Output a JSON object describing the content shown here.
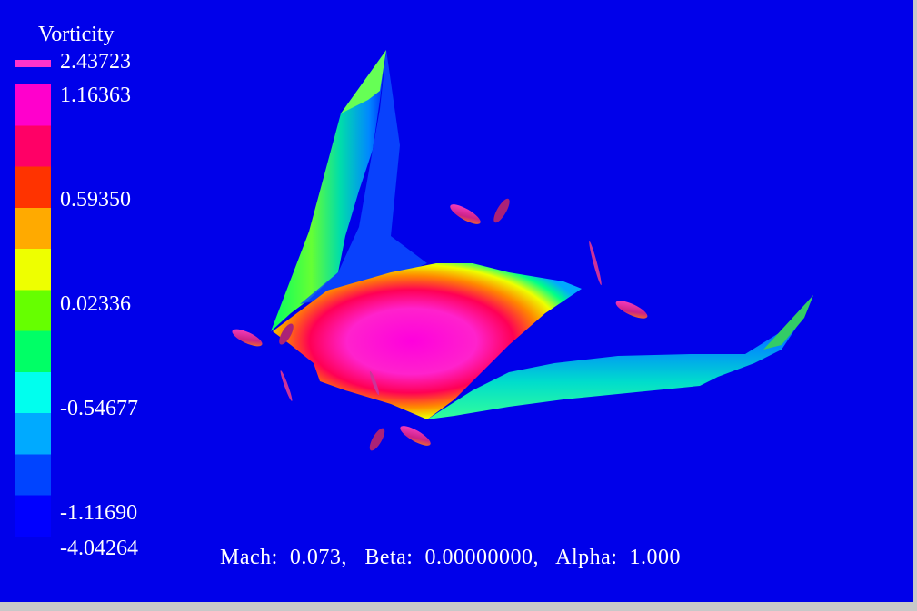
{
  "legend": {
    "title": "Vorticity",
    "max_label": "2.43723",
    "min_label": "-4.04264",
    "ticks": [
      "1.16363",
      "0.59350",
      "0.02336",
      "-0.54677",
      "-1.11690"
    ],
    "max_color": "#ff33cc",
    "min_color": "#0000ff"
  },
  "status": {
    "mach_label": "Mach:",
    "mach_value": "0.073,",
    "beta_label": "Beta:",
    "beta_value": "0.00000000,",
    "alpha_label": "Alpha:",
    "alpha_value": "1.000"
  },
  "colors": {
    "background": "#0000ea",
    "frame": "#c8c8c8",
    "text": "#ffffff",
    "colormap": [
      "#0000ff",
      "#0044ff",
      "#00aaff",
      "#00ffee",
      "#00ff66",
      "#66ff00",
      "#eeff00",
      "#ffaa00",
      "#ff3300",
      "#ff0066",
      "#ff00cc"
    ]
  }
}
